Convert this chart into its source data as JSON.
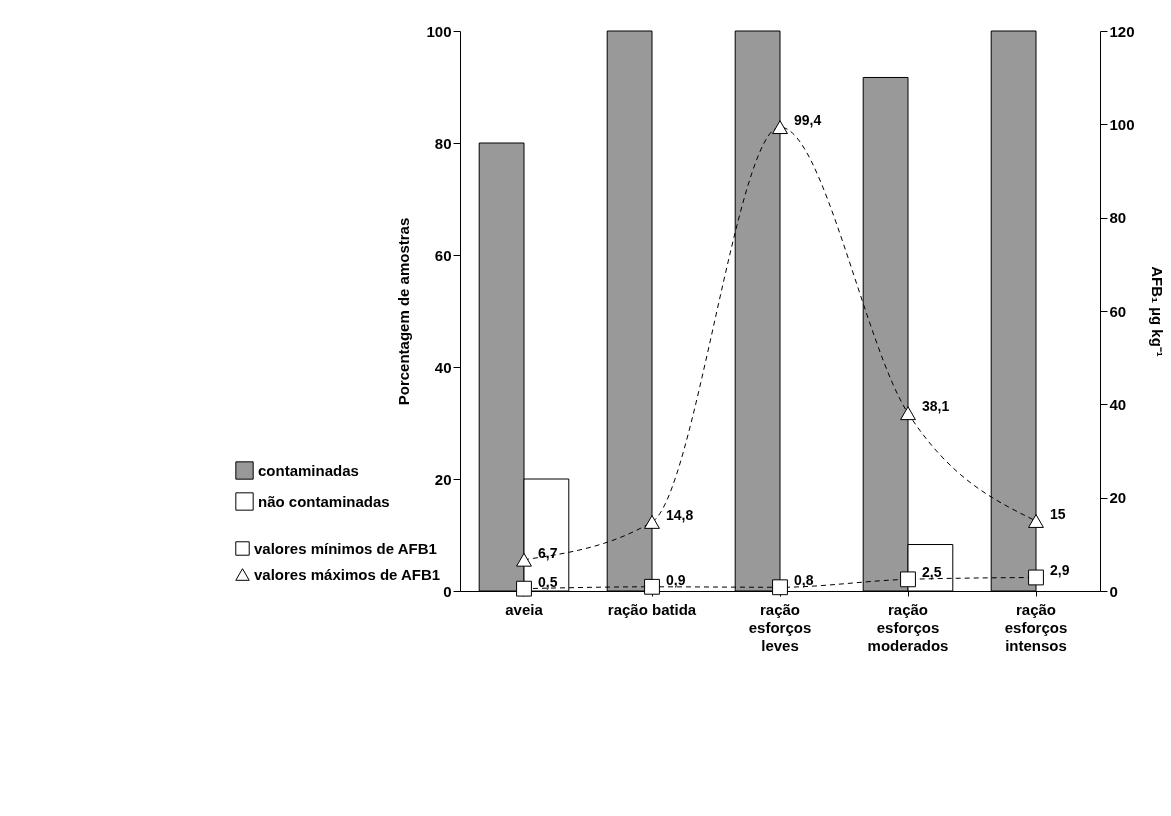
{
  "chart_data": {
    "type": "bar",
    "categories": [
      "aveia",
      "ração batida",
      "ração esforços leves",
      "ração esforços moderados",
      "ração esforços intensos"
    ],
    "ylabel": "Porcentagem de amostras",
    "y2label": "AFB₁ µg kg⁻¹",
    "ylim": [
      0,
      100
    ],
    "yticks": [
      0,
      20,
      40,
      60,
      80,
      100
    ],
    "y2lim": [
      0,
      120
    ],
    "y2ticks": [
      0,
      20,
      40,
      60,
      80,
      100,
      120
    ],
    "grid": false,
    "legend": "bottom left",
    "line_style": "dashed",
    "series": [
      {
        "name": "contaminadas",
        "type": "bar",
        "color": "#999999",
        "values": [
          80,
          100,
          100,
          91.7,
          100
        ]
      },
      {
        "name": "não contaminadas",
        "type": "bar",
        "color": "#ffffff",
        "values": [
          20,
          0,
          0,
          8.3,
          0
        ]
      },
      {
        "name": "valores mínimos de AFB1",
        "type": "line",
        "axis": "y2",
        "marker": "square",
        "color": "#000000",
        "values": [
          0.5,
          0.9,
          0.8,
          2.5,
          2.9
        ],
        "value_labels": [
          "0,5",
          "0,9",
          "0,8",
          "2,5",
          "2,9"
        ]
      },
      {
        "name": "valores máximos de AFB1",
        "type": "line",
        "axis": "y2",
        "marker": "triangle",
        "color": "#000000",
        "values": [
          6.7,
          14.8,
          99.4,
          38.1,
          15
        ],
        "value_labels": [
          "6,7",
          "14,8",
          "99,4",
          "38,1",
          "15"
        ]
      }
    ]
  }
}
